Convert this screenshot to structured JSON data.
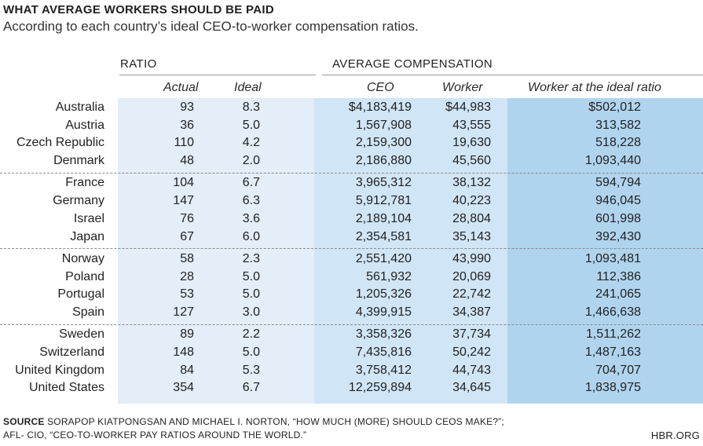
{
  "header": {
    "title": "WHAT AVERAGE WORKERS SHOULD BE PAID",
    "subtitle": "According to each country’s ideal CEO-to-worker compensation ratios."
  },
  "chart_data": {
    "type": "table",
    "title": "WHAT AVERAGE WORKERS SHOULD BE PAID",
    "subtitle": "According to each country’s ideal CEO-to-worker compensation ratios.",
    "groups": [
      {
        "label": "RATIO",
        "columns": [
          "Actual",
          "Ideal"
        ]
      },
      {
        "label": "AVERAGE COMPENSATION",
        "columns": [
          "CEO",
          "Worker",
          "Worker at the ideal ratio"
        ]
      }
    ],
    "columns": [
      "Actual",
      "Ideal",
      "CEO",
      "Worker",
      "Worker at the ideal ratio"
    ],
    "rows": [
      {
        "country": "Australia",
        "actual": "93",
        "ideal": "8.3",
        "ceo": "$4,183,419",
        "worker": "$44,983",
        "worker_ideal": "$502,012"
      },
      {
        "country": "Austria",
        "actual": "36",
        "ideal": "5.0",
        "ceo": "1,567,908",
        "worker": "43,555",
        "worker_ideal": "313,582"
      },
      {
        "country": "Czech Republic",
        "actual": "110",
        "ideal": "4.2",
        "ceo": "2,159,300",
        "worker": "19,630",
        "worker_ideal": "518,228"
      },
      {
        "country": "Denmark",
        "actual": "48",
        "ideal": "2.0",
        "ceo": "2,186,880",
        "worker": "45,560",
        "worker_ideal": "1,093,440"
      },
      {
        "country": "France",
        "actual": "104",
        "ideal": "6.7",
        "ceo": "3,965,312",
        "worker": "38,132",
        "worker_ideal": "594,794"
      },
      {
        "country": "Germany",
        "actual": "147",
        "ideal": "6.3",
        "ceo": "5,912,781",
        "worker": "40,223",
        "worker_ideal": "946,045"
      },
      {
        "country": "Israel",
        "actual": "76",
        "ideal": "3.6",
        "ceo": "2,189,104",
        "worker": "28,804",
        "worker_ideal": "601,998"
      },
      {
        "country": "Japan",
        "actual": "67",
        "ideal": "6.0",
        "ceo": "2,354,581",
        "worker": "35,143",
        "worker_ideal": "392,430"
      },
      {
        "country": "Norway",
        "actual": "58",
        "ideal": "2.3",
        "ceo": "2,551,420",
        "worker": "43,990",
        "worker_ideal": "1,093,481"
      },
      {
        "country": "Poland",
        "actual": "28",
        "ideal": "5.0",
        "ceo": "561,932",
        "worker": "20,069",
        "worker_ideal": "112,386"
      },
      {
        "country": "Portugal",
        "actual": "53",
        "ideal": "5.0",
        "ceo": "1,205,326",
        "worker": "22,742",
        "worker_ideal": "241,065"
      },
      {
        "country": "Spain",
        "actual": "127",
        "ideal": "3.0",
        "ceo": "4,399,915",
        "worker": "34,387",
        "worker_ideal": "1,466,638"
      },
      {
        "country": "Sweden",
        "actual": "89",
        "ideal": "2.2",
        "ceo": "3,358,326",
        "worker": "37,734",
        "worker_ideal": "1,511,262"
      },
      {
        "country": "Switzerland",
        "actual": "148",
        "ideal": "5.0",
        "ceo": "7,435,816",
        "worker": "50,242",
        "worker_ideal": "1,487,163"
      },
      {
        "country": "United Kingdom",
        "actual": "84",
        "ideal": "5.3",
        "ceo": "3,758,412",
        "worker": "44,743",
        "worker_ideal": "704,707"
      },
      {
        "country": "United States",
        "actual": "354",
        "ideal": "6.7",
        "ceo": "12,259,894",
        "worker": "34,645",
        "worker_ideal": "1,838,975"
      }
    ]
  },
  "footer": {
    "source_label": "SOURCE",
    "source_line1": " SORAPOP KIATPONGSAN AND MICHAEL I. NORTON, “HOW MUCH (MORE) SHOULD CEOS MAKE?”;",
    "source_line2": "AFL- CIO, “CEO-TO-WORKER PAY RATIOS AROUND THE WORLD.”",
    "credit": "HBR.ORG"
  },
  "colors": {
    "ratio_bg": "#e3eef8",
    "comp_bg": "#d0e5f5",
    "highlight_bg": "#b0d4ee"
  }
}
